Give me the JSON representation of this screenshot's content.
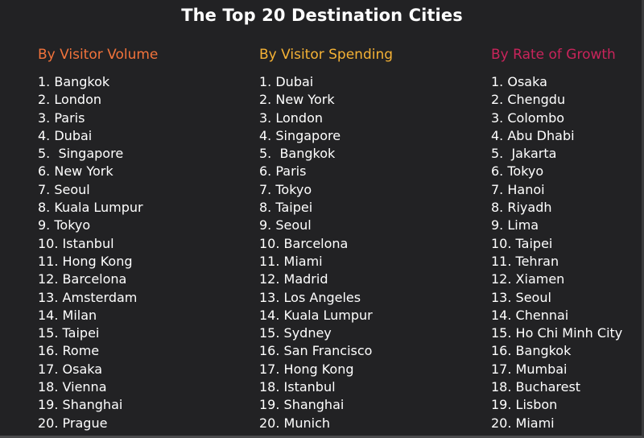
{
  "title": "The Top 20 Destination Cities",
  "columns": {
    "volume": {
      "header": "By Visitor Volume",
      "color": "#f2733b",
      "items": [
        "1. Bangkok",
        "2. London",
        "3. Paris",
        "4. Dubai",
        "5.  Singapore",
        "6. New York",
        "7. Seoul",
        "8. Kuala Lumpur",
        "9. Tokyo",
        "10. Istanbul",
        "11. Hong Kong",
        "12. Barcelona",
        "13. Amsterdam",
        "14. Milan",
        "15. Taipei",
        "16. Rome",
        "17. Osaka",
        "18. Vienna",
        "19. Shanghai",
        "20. Prague"
      ]
    },
    "spending": {
      "header": "By Visitor Spending",
      "color": "#f5b235",
      "items": [
        "1. Dubai",
        "2. New York",
        "3. London",
        "4. Singapore",
        "5.  Bangkok",
        "6. Paris",
        "7. Tokyo",
        "8. Taipei",
        "9. Seoul",
        "10. Barcelona",
        "11. Miami",
        "12. Madrid",
        "13. Los Angeles",
        "14. Kuala Lumpur",
        "15. Sydney",
        "16. San Francisco",
        "17. Hong Kong",
        "18. Istanbul",
        "19. Shanghai",
        "20. Munich"
      ]
    },
    "growth": {
      "header": "By Rate of Growth",
      "color": "#c9245b",
      "items": [
        "1. Osaka",
        "2. Chengdu",
        "3. Colombo",
        "4. Abu Dhabi",
        "5.  Jakarta",
        "6. Tokyo",
        "7. Hanoi",
        "8. Riyadh",
        "9. Lima",
        "10. Taipei",
        "11. Tehran",
        "12. Xiamen",
        "13. Seoul",
        "14. Chennai",
        "15. Ho Chi Minh City",
        "16. Bangkok",
        "17. Mumbai",
        "18. Bucharest",
        "19. Lisbon",
        "20. Miami"
      ]
    }
  }
}
